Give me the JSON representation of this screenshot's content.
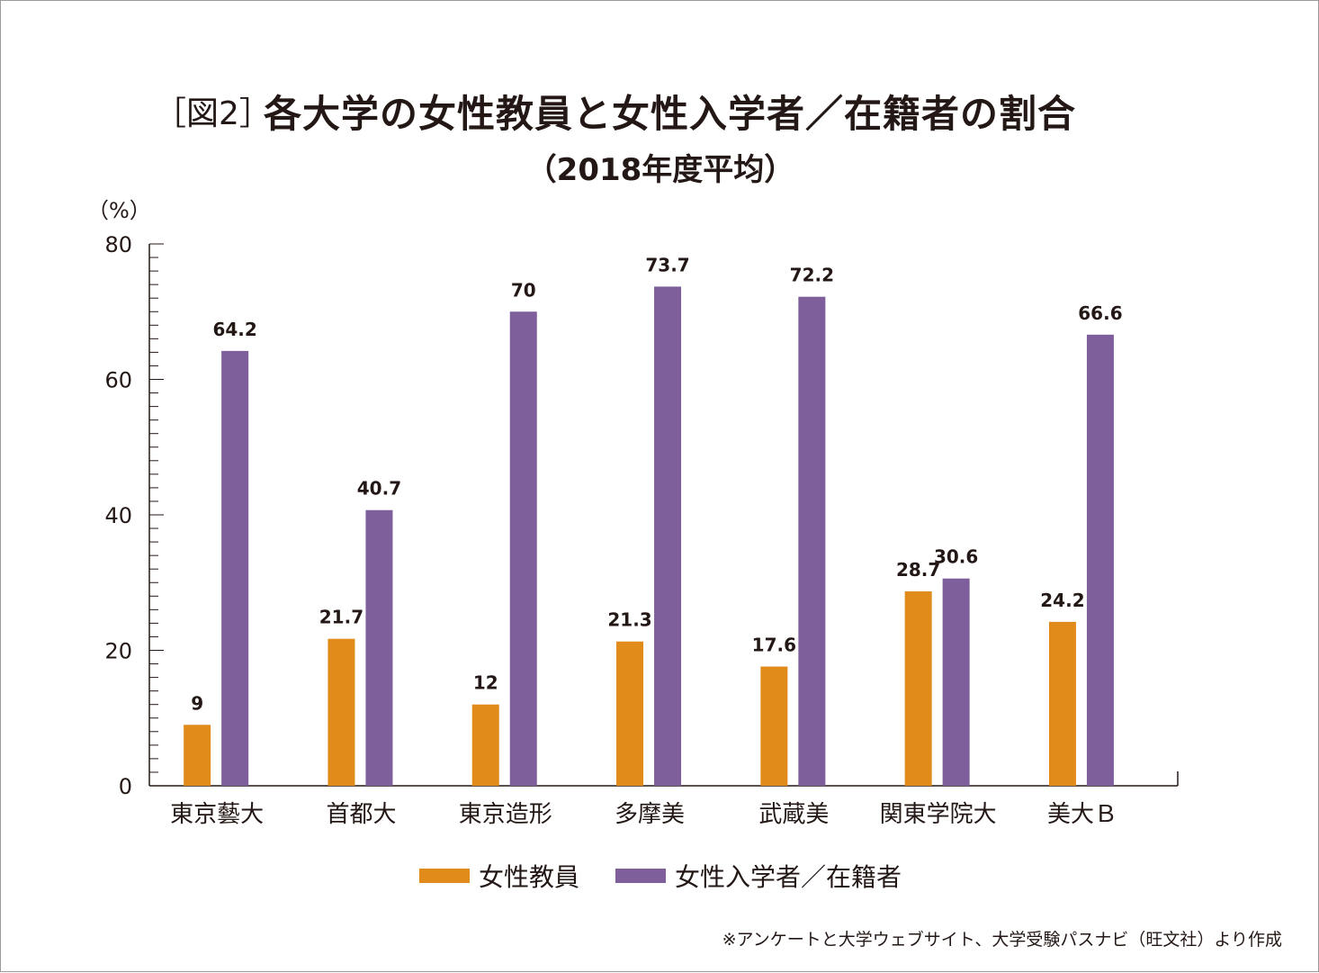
{
  "title": {
    "prefix": "［図2］",
    "main": "各大学の女性教員と女性入学者／在籍者の割合",
    "sub": "（2018年度平均）"
  },
  "colors": {
    "faculty": "#e08b1a",
    "students": "#7f5f9b",
    "axis": "#231815"
  },
  "note": "※アンケートと大学ウェブサイト、大学受験パスナビ（旺文社）より作成",
  "chart_data": {
    "type": "bar",
    "ylabel": "（%）",
    "ylim": [
      0,
      80
    ],
    "yticks": [
      0,
      20,
      40,
      60,
      80
    ],
    "categories": [
      "東京藝大",
      "首都大",
      "東京造形",
      "多摩美",
      "武蔵美",
      "関東学院大",
      "美大Ｂ"
    ],
    "series": [
      {
        "name": "女性教員",
        "values": [
          9,
          21.7,
          12,
          21.3,
          17.6,
          28.7,
          24.2
        ],
        "labels": [
          "9",
          "21.7",
          "12",
          "21.3",
          "17.6",
          "28.7",
          "24.2"
        ]
      },
      {
        "name": "女性入学者／在籍者",
        "values": [
          64.2,
          40.7,
          70,
          73.7,
          72.2,
          30.6,
          66.6
        ],
        "labels": [
          "64.2",
          "40.7",
          "70",
          "73.7",
          "72.2",
          "30.6",
          "66.6"
        ]
      }
    ],
    "legend": "bottom-center",
    "grid": false
  }
}
